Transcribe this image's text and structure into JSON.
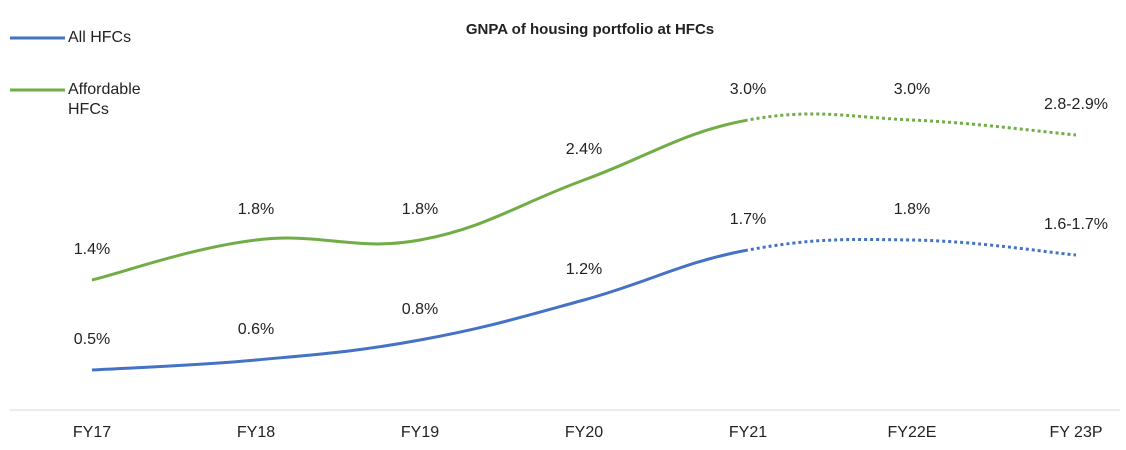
{
  "chart_data": {
    "type": "line",
    "title": "GNPA of housing portfolio at HFCs",
    "categories": [
      "FY17",
      "FY18",
      "FY19",
      "FY20",
      "FY21",
      "FY22E",
      "FY 23P"
    ],
    "dotted_after": "FY21",
    "ylim": [
      0,
      4.2
    ],
    "legend": "top-left",
    "series": [
      {
        "name": "All HFCs",
        "color": "#4472c4",
        "values": [
          0.5,
          0.6,
          0.8,
          1.2,
          1.7,
          1.8,
          1.65
        ],
        "value_labels": [
          "0.5%",
          "0.6%",
          "0.8%",
          "1.2%",
          "1.7%",
          "1.8%",
          "1.6-1.7%"
        ]
      },
      {
        "name": "Affordable HFCs",
        "color": "#70ad47",
        "values": [
          1.4,
          1.8,
          1.8,
          2.4,
          3.0,
          3.0,
          2.85
        ],
        "value_labels": [
          "1.4%",
          "1.8%",
          "1.8%",
          "2.4%",
          "3.0%",
          "3.0%",
          "2.8-2.9%"
        ]
      }
    ]
  }
}
